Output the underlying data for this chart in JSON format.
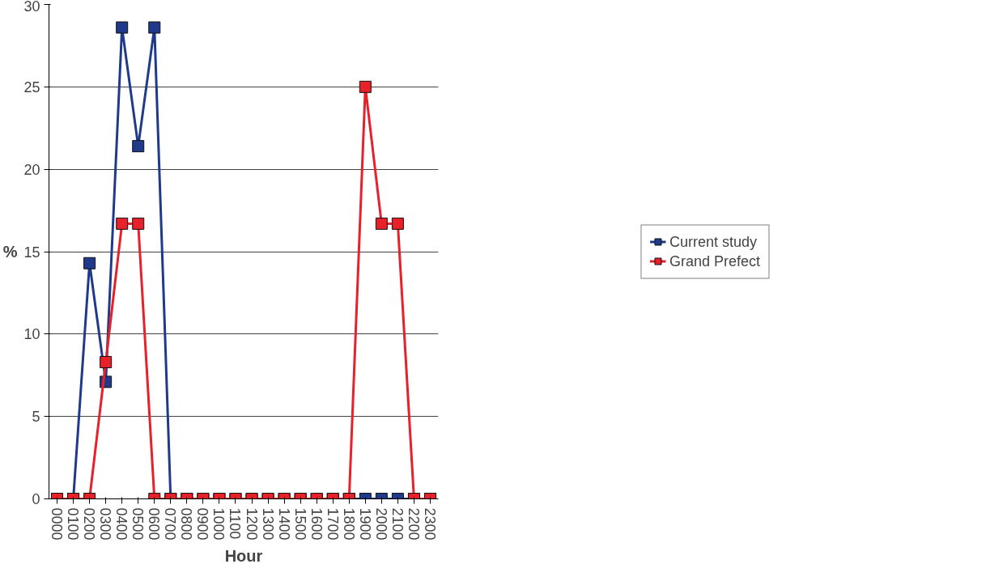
{
  "chart_data": {
    "type": "line",
    "xlabel": "Hour",
    "ylabel": "%",
    "categories": [
      "0000",
      "0100",
      "0200",
      "0300",
      "0400",
      "0500",
      "0600",
      "0700",
      "0800",
      "0900",
      "1000",
      "1100",
      "1200",
      "1300",
      "1400",
      "1500",
      "1600",
      "1700",
      "1800",
      "1900",
      "2000",
      "2100",
      "2200",
      "2300"
    ],
    "series": [
      {
        "name": "Current study",
        "color": "#1f3a8a",
        "values": [
          0,
          0,
          14.3,
          7.1,
          28.6,
          21.4,
          28.6,
          0,
          0,
          0,
          0,
          0,
          0,
          0,
          0,
          0,
          0,
          0,
          0,
          0,
          0,
          0,
          0,
          0
        ]
      },
      {
        "name": "Grand Prefect",
        "color": "#e8202a",
        "values": [
          0,
          0,
          0,
          8.3,
          16.7,
          16.7,
          0,
          0,
          0,
          0,
          0,
          0,
          0,
          0,
          0,
          0,
          0,
          0,
          0,
          25,
          16.7,
          16.7,
          0,
          0
        ]
      }
    ],
    "ylim": [
      0,
      30
    ],
    "yticks": [
      0,
      5,
      10,
      15,
      20,
      25,
      30
    ],
    "grid": "y",
    "legend": "right",
    "marker": "square",
    "line_style": "solid"
  }
}
